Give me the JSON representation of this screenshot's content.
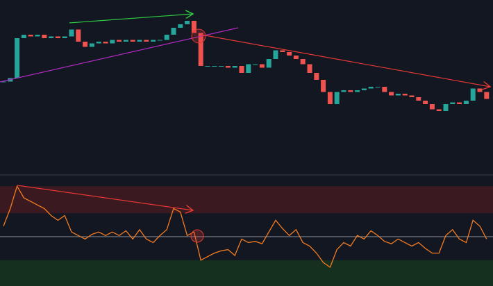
{
  "chart_data": [
    {
      "type": "candlestick",
      "up_color": "#26a69a",
      "down_color": "#ef5350",
      "ylim": [
        0,
        100
      ],
      "values": [
        53,
        55,
        78,
        80,
        79,
        80,
        78,
        79,
        78,
        79,
        83,
        76,
        73,
        75,
        76,
        75,
        77,
        76,
        77,
        76,
        77,
        76,
        77,
        77,
        80,
        84,
        86,
        88,
        81,
        62,
        62,
        62,
        62,
        61,
        62,
        58,
        63,
        63,
        61,
        66,
        71,
        70,
        68,
        66,
        63,
        58,
        54,
        47,
        40,
        47,
        48,
        47,
        48,
        49,
        50,
        50,
        47,
        45,
        46,
        45,
        44,
        42,
        40,
        37,
        36,
        40,
        41,
        40,
        42,
        49,
        47,
        43
      ]
    },
    {
      "type": "line",
      "color": "#f57c20",
      "ylim": [
        8,
        102
      ],
      "midline": 50,
      "bands": [
        {
          "range": [
            70,
            93
          ],
          "color": "#3a1a20"
        },
        {
          "range": [
            8,
            30
          ],
          "color": "#16301f"
        }
      ],
      "values": [
        59,
        74,
        93,
        83,
        80,
        77,
        74,
        68,
        64,
        68,
        54,
        51,
        48,
        52,
        54,
        51,
        54,
        51,
        55,
        48,
        56,
        48,
        45,
        51,
        56,
        74,
        71,
        51,
        54,
        30,
        33,
        36,
        38,
        39,
        34,
        48,
        45,
        46,
        44,
        54,
        64,
        57,
        51,
        56,
        45,
        42,
        36,
        28,
        24,
        39,
        45,
        42,
        51,
        48,
        55,
        51,
        46,
        44,
        48,
        45,
        42,
        45,
        40,
        36,
        36,
        51,
        56,
        48,
        45,
        64,
        59,
        48
      ]
    }
  ]
}
